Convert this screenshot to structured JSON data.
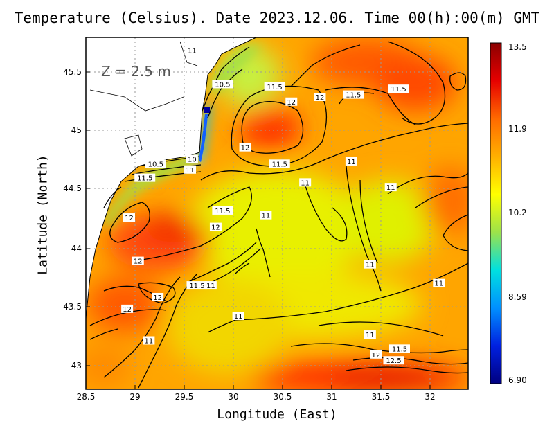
{
  "title": "Temperature (Celsius). Date 2023.12.06. Time 00(h):00(m) GMT",
  "depth_label": "Z = 2.5 m",
  "xlabel": "Longitude (East)",
  "ylabel": "Latitude (North)",
  "x_ticks": [
    "28.5",
    "29",
    "29.5",
    "30",
    "30.5",
    "31",
    "31.5",
    "32"
  ],
  "y_ticks": [
    "45.5",
    "45",
    "44.5",
    "44",
    "43.5",
    "43"
  ],
  "colorbar": {
    "labels": [
      "13.5",
      "11.9",
      "10.2",
      "8.59",
      "6.90"
    ],
    "min": 6.9,
    "max": 13.5,
    "colors": [
      "#8b0000",
      "#e60000",
      "#ff6a00",
      "#ffb000",
      "#ffff00",
      "#9de24a",
      "#00e0e0",
      "#0090ff",
      "#0020e0",
      "#000080"
    ]
  },
  "contour_labels": [
    {
      "text": "11",
      "lon": 29.58,
      "lat": 45.69
    },
    {
      "text": "10.5",
      "lon": 29.89,
      "lat": 45.4
    },
    {
      "text": "11.5",
      "lon": 30.42,
      "lat": 45.38
    },
    {
      "text": "12",
      "lon": 30.59,
      "lat": 45.25
    },
    {
      "text": "12",
      "lon": 30.88,
      "lat": 45.29
    },
    {
      "text": "11.5",
      "lon": 31.22,
      "lat": 45.31
    },
    {
      "text": "11.5",
      "lon": 31.68,
      "lat": 45.36
    },
    {
      "text": "12",
      "lon": 30.12,
      "lat": 44.86
    },
    {
      "text": "10",
      "lon": 29.58,
      "lat": 44.76
    },
    {
      "text": "10.5",
      "lon": 29.21,
      "lat": 44.72
    },
    {
      "text": "11",
      "lon": 29.56,
      "lat": 44.67
    },
    {
      "text": "11.5",
      "lon": 30.47,
      "lat": 44.72
    },
    {
      "text": "11",
      "lon": 31.2,
      "lat": 44.74
    },
    {
      "text": "11.5",
      "lon": 29.1,
      "lat": 44.6
    },
    {
      "text": "11",
      "lon": 30.73,
      "lat": 44.56
    },
    {
      "text": "11",
      "lon": 31.6,
      "lat": 44.52
    },
    {
      "text": "11.5",
      "lon": 29.89,
      "lat": 44.32
    },
    {
      "text": "11",
      "lon": 30.33,
      "lat": 44.28
    },
    {
      "text": "12",
      "lon": 28.94,
      "lat": 44.26
    },
    {
      "text": "12",
      "lon": 29.82,
      "lat": 44.18
    },
    {
      "text": "12",
      "lon": 29.03,
      "lat": 43.89
    },
    {
      "text": "11",
      "lon": 31.39,
      "lat": 43.86
    },
    {
      "text": "11.5",
      "lon": 29.63,
      "lat": 43.68
    },
    {
      "text": "11",
      "lon": 29.77,
      "lat": 43.68
    },
    {
      "text": "11",
      "lon": 32.09,
      "lat": 43.7
    },
    {
      "text": "12",
      "lon": 29.23,
      "lat": 43.58
    },
    {
      "text": "12",
      "lon": 28.92,
      "lat": 43.48
    },
    {
      "text": "11",
      "lon": 30.05,
      "lat": 43.42
    },
    {
      "text": "11",
      "lon": 31.39,
      "lat": 43.26
    },
    {
      "text": "11",
      "lon": 29.14,
      "lat": 43.21
    },
    {
      "text": "11.5",
      "lon": 31.69,
      "lat": 43.14
    },
    {
      "text": "12",
      "lon": 31.45,
      "lat": 43.09
    },
    {
      "text": "12.5",
      "lon": 31.63,
      "lat": 43.04
    }
  ]
}
